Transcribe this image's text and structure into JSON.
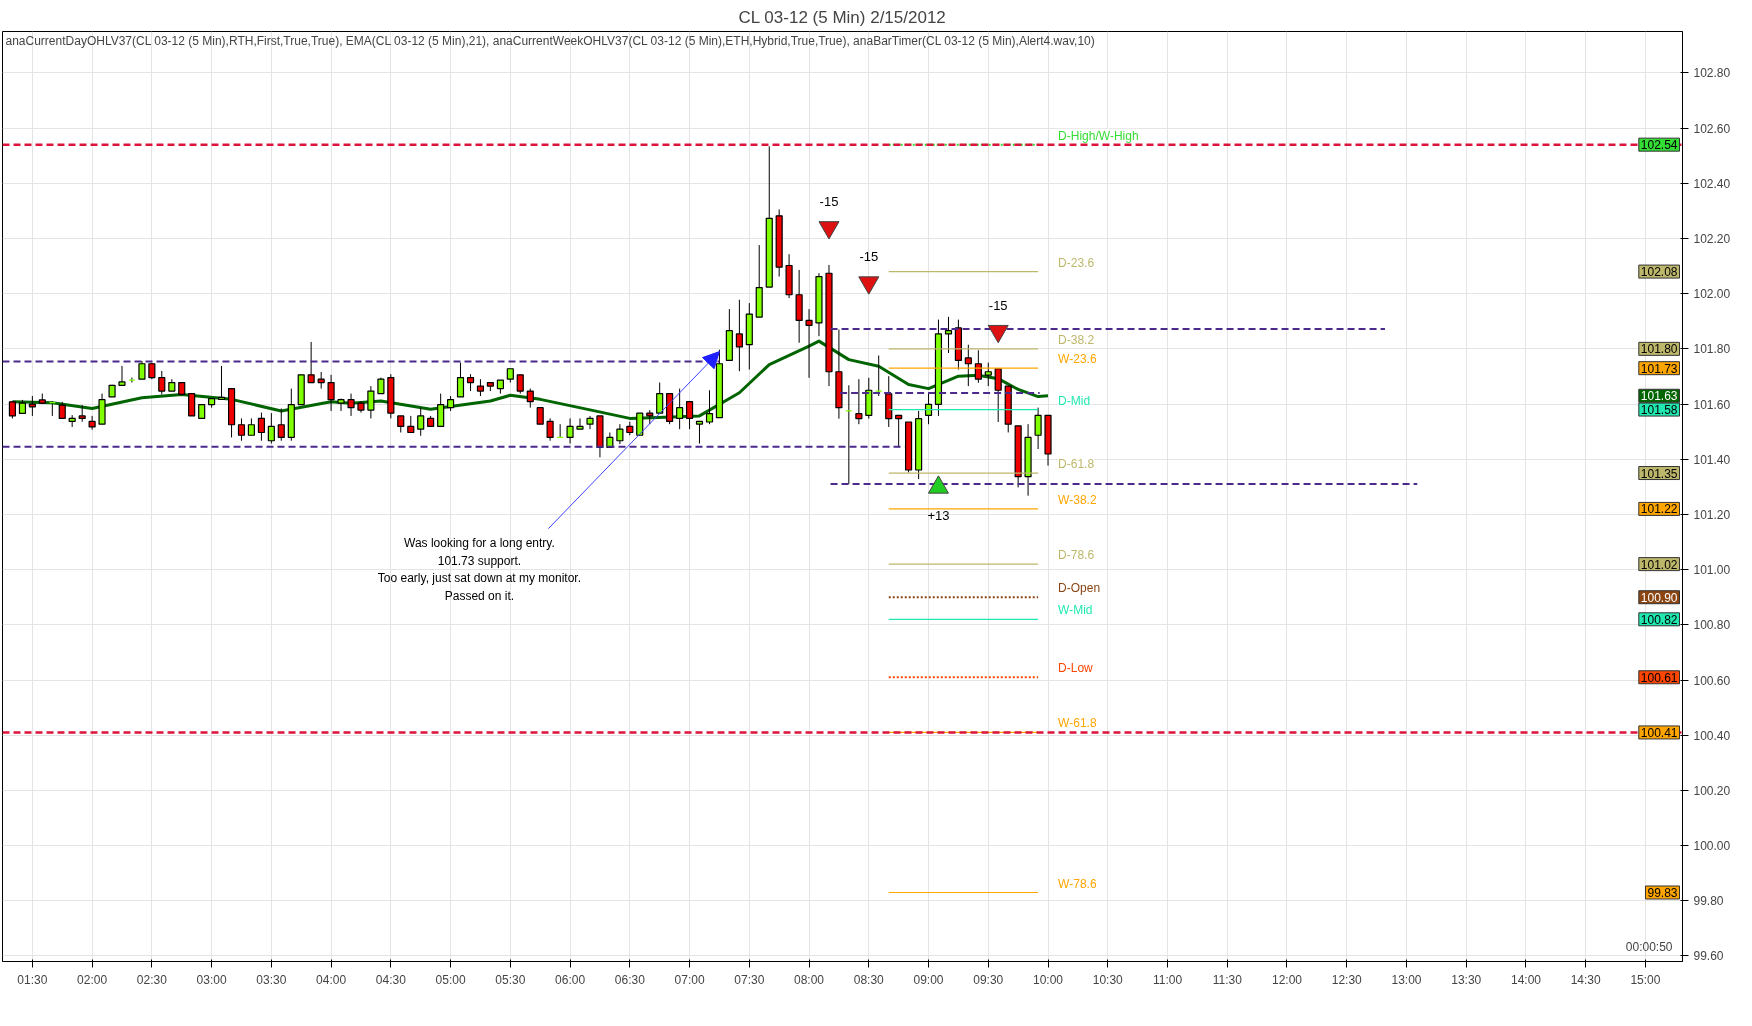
{
  "chart_data": {
    "type": "candlestick",
    "title": "CL 03-12 (5 Min) 2/15/2012",
    "xlim": [
      1.25,
      15.31
    ],
    "ylim": [
      99.58,
      102.95
    ],
    "xticks": [
      {
        "value": 1.5,
        "label": "01:30"
      },
      {
        "value": 2,
        "label": "02:00"
      },
      {
        "value": 2.5,
        "label": "02:30"
      },
      {
        "value": 3,
        "label": "03:00"
      },
      {
        "value": 3.5,
        "label": "03:30"
      },
      {
        "value": 4,
        "label": "04:00"
      },
      {
        "value": 4.5,
        "label": "04:30"
      },
      {
        "value": 5,
        "label": "05:00"
      },
      {
        "value": 5.5,
        "label": "05:30"
      },
      {
        "value": 6,
        "label": "06:00"
      },
      {
        "value": 6.5,
        "label": "06:30"
      },
      {
        "value": 7,
        "label": "07:00"
      },
      {
        "value": 7.5,
        "label": "07:30"
      },
      {
        "value": 8,
        "label": "08:00"
      },
      {
        "value": 8.5,
        "label": "08:30"
      },
      {
        "value": 9,
        "label": "09:00"
      },
      {
        "value": 9.5,
        "label": "09:30"
      },
      {
        "value": 10,
        "label": "10:00"
      },
      {
        "value": 10.5,
        "label": "10:30"
      },
      {
        "value": 11,
        "label": "11:00"
      },
      {
        "value": 11.5,
        "label": "11:30"
      },
      {
        "value": 12,
        "label": "12:00"
      },
      {
        "value": 12.5,
        "label": "12:30"
      },
      {
        "value": 13,
        "label": "13:00"
      },
      {
        "value": 13.5,
        "label": "13:30"
      },
      {
        "value": 14,
        "label": "14:00"
      },
      {
        "value": 14.5,
        "label": "14:30"
      },
      {
        "value": 15,
        "label": "15:00"
      }
    ],
    "yticks": [
      {
        "value": 99.6,
        "label": "99.60"
      },
      {
        "value": 99.8,
        "label": "99.80"
      },
      {
        "value": 100.0,
        "label": "100.00"
      },
      {
        "value": 100.2,
        "label": "100.20"
      },
      {
        "value": 100.4,
        "label": "100.40"
      },
      {
        "value": 100.6,
        "label": "100.60"
      },
      {
        "value": 100.8,
        "label": "100.80"
      },
      {
        "value": 101.0,
        "label": "101.00"
      },
      {
        "value": 101.2,
        "label": "101.20"
      },
      {
        "value": 101.4,
        "label": "101.40"
      },
      {
        "value": 101.6,
        "label": "101.60"
      },
      {
        "value": 101.8,
        "label": "101.80"
      },
      {
        "value": 102.0,
        "label": "102.00"
      },
      {
        "value": 102.2,
        "label": "102.20"
      },
      {
        "value": 102.4,
        "label": "102.40"
      },
      {
        "value": 102.6,
        "label": "102.60"
      },
      {
        "value": 102.8,
        "label": "102.80"
      }
    ],
    "grid": true,
    "ref_lines": [
      {
        "axis": "y",
        "value": 102.54,
        "color": "#dc143c",
        "line_style": "dashed"
      },
      {
        "axis": "y",
        "value": 100.41,
        "color": "#dc143c",
        "line_style": "dashed"
      }
    ],
    "series": [
      {
        "x": [
          1.333,
          1.417,
          1.5,
          1.583,
          1.667,
          1.75,
          1.833,
          1.917,
          2,
          2.083,
          2.167,
          2.25,
          2.333,
          2.417,
          2.5,
          2.583,
          2.667,
          2.75,
          2.833,
          2.917,
          3,
          3.083,
          3.167,
          3.25,
          3.333,
          3.417,
          3.5,
          3.583,
          3.667,
          3.75,
          3.833,
          3.917,
          4,
          4.083,
          4.167,
          4.25,
          4.333,
          4.417,
          4.5,
          4.583,
          4.667,
          4.75,
          4.833,
          4.917,
          5,
          5.083,
          5.167,
          5.25,
          5.333,
          5.417,
          5.5,
          5.583,
          5.667,
          5.75,
          5.833,
          5.917,
          6,
          6.083,
          6.167,
          6.25,
          6.333,
          6.417,
          6.5,
          6.583,
          6.667,
          6.75,
          6.833,
          6.917,
          7,
          7.083,
          7.167,
          7.25,
          7.333,
          7.417,
          7.5,
          7.583,
          7.667,
          7.75,
          7.833,
          7.917,
          8,
          8.083,
          8.167,
          8.25,
          8.333,
          8.417,
          8.5,
          8.583,
          8.667,
          8.75,
          8.833,
          8.917,
          9,
          9.083,
          9.167,
          9.25,
          9.333,
          9.417,
          9.5,
          9.583,
          9.667,
          9.75,
          9.833,
          9.917,
          10
        ],
        "ohlc": [
          [
            101.608,
            101.61,
            101.548,
            101.557
          ],
          [
            101.566,
            101.615,
            101.566,
            101.603
          ],
          [
            101.6,
            101.629,
            101.557,
            101.59
          ],
          [
            101.615,
            101.638,
            101.6,
            101.603
          ],
          [
            101.605,
            101.61,
            101.557,
            101.605
          ],
          [
            101.596,
            101.608,
            101.548,
            101.548
          ],
          [
            101.537,
            101.56,
            101.517,
            101.548
          ],
          [
            101.557,
            101.596,
            101.536,
            101.548
          ],
          [
            101.537,
            101.557,
            101.507,
            101.517
          ],
          [
            101.527,
            101.638,
            101.527,
            101.616
          ],
          [
            101.626,
            101.67,
            101.626,
            101.668
          ],
          [
            101.668,
            101.738,
            101.668,
            101.68
          ],
          [
            101.687,
            101.696,
            101.678,
            101.687
          ],
          [
            101.69,
            101.756,
            101.69,
            101.746
          ],
          [
            101.746,
            101.75,
            101.69,
            101.696
          ],
          [
            101.696,
            101.72,
            101.635,
            101.647
          ],
          [
            101.647,
            101.69,
            101.647,
            101.678
          ],
          [
            101.678,
            101.678,
            101.635,
            101.635
          ],
          [
            101.638,
            101.64,
            101.557,
            101.557
          ],
          [
            101.548,
            101.598,
            101.548,
            101.598
          ],
          [
            101.598,
            101.62,
            101.587,
            101.62
          ],
          [
            101.617,
            101.738,
            101.617,
            101.624
          ],
          [
            101.656,
            101.656,
            101.479,
            101.525
          ],
          [
            101.525,
            101.548,
            101.467,
            101.487
          ],
          [
            101.487,
            101.548,
            101.487,
            101.525
          ],
          [
            101.548,
            101.569,
            101.467,
            101.497
          ],
          [
            101.467,
            101.567,
            101.457,
            101.519
          ],
          [
            101.525,
            101.584,
            101.467,
            101.479
          ],
          [
            101.479,
            101.656,
            101.467,
            101.598
          ],
          [
            101.598,
            101.706,
            101.598,
            101.706
          ],
          [
            101.706,
            101.825,
            101.678,
            101.678
          ],
          [
            101.69,
            101.716,
            101.656,
            101.678
          ],
          [
            101.678,
            101.706,
            101.575,
            101.616
          ],
          [
            101.603,
            101.62,
            101.575,
            101.616
          ],
          [
            101.616,
            101.638,
            101.557,
            101.587
          ],
          [
            101.603,
            101.61,
            101.569,
            101.578
          ],
          [
            101.578,
            101.665,
            101.548,
            101.647
          ],
          [
            101.638,
            101.696,
            101.638,
            101.69
          ],
          [
            101.696,
            101.708,
            101.548,
            101.567
          ],
          [
            101.557,
            101.557,
            101.497,
            101.519
          ],
          [
            101.519,
            101.557,
            101.497,
            101.497
          ],
          [
            101.509,
            101.587,
            101.485,
            101.557
          ],
          [
            101.548,
            101.557,
            101.519,
            101.519
          ],
          [
            101.519,
            101.638,
            101.519,
            101.598
          ],
          [
            101.587,
            101.629,
            101.575,
            101.616
          ],
          [
            101.626,
            101.75,
            101.626,
            101.696
          ],
          [
            101.696,
            101.708,
            101.647,
            101.678
          ],
          [
            101.665,
            101.69,
            101.629,
            101.647
          ],
          [
            101.678,
            101.678,
            101.647,
            101.665
          ],
          [
            101.656,
            101.687,
            101.638,
            101.687
          ],
          [
            101.69,
            101.728,
            101.678,
            101.728
          ],
          [
            101.706,
            101.706,
            101.638,
            101.647
          ],
          [
            101.647,
            101.656,
            101.587,
            101.609
          ],
          [
            101.587,
            101.587,
            101.527,
            101.527
          ],
          [
            101.537,
            101.548,
            101.467,
            101.479
          ],
          [
            101.479,
            101.527,
            101.479,
            101.479
          ],
          [
            101.479,
            101.548,
            101.457,
            101.519
          ],
          [
            101.509,
            101.548,
            101.509,
            101.519
          ],
          [
            101.527,
            101.557,
            101.509,
            101.548
          ],
          [
            101.557,
            101.557,
            101.407,
            101.443
          ],
          [
            101.443,
            101.497,
            101.443,
            101.479
          ],
          [
            101.467,
            101.527,
            101.455,
            101.509
          ],
          [
            101.519,
            101.536,
            101.487,
            101.497
          ],
          [
            101.487,
            101.567,
            101.487,
            101.567
          ],
          [
            101.567,
            101.578,
            101.527,
            101.557
          ],
          [
            101.567,
            101.678,
            101.567,
            101.638
          ],
          [
            101.638,
            101.638,
            101.527,
            101.537
          ],
          [
            101.548,
            101.656,
            101.509,
            101.587
          ],
          [
            101.609,
            101.609,
            101.509,
            101.548
          ],
          [
            101.527,
            101.537,
            101.457,
            101.537
          ],
          [
            101.535,
            101.65,
            101.527,
            101.565
          ],
          [
            101.551,
            101.797,
            101.551,
            101.746
          ],
          [
            101.758,
            101.944,
            101.758,
            101.866
          ],
          [
            101.854,
            101.978,
            101.719,
            101.807
          ],
          [
            101.815,
            101.966,
            101.725,
            101.926
          ],
          [
            101.915,
            102.176,
            101.915,
            102.022
          ],
          [
            102.024,
            102.534,
            102.024,
            102.273
          ],
          [
            102.282,
            102.305,
            102.062,
            102.096
          ],
          [
            102.102,
            102.143,
            101.984,
            101.996
          ],
          [
            101.996,
            102.086,
            101.822,
            101.903
          ],
          [
            101.903,
            101.944,
            101.695,
            101.885
          ],
          [
            101.894,
            102.074,
            101.846,
            102.062
          ],
          [
            102.074,
            102.104,
            101.665,
            101.717
          ],
          [
            101.717,
            101.87,
            101.547,
            101.587
          ],
          [
            101.575,
            101.668,
            101.31,
            101.575
          ],
          [
            101.565,
            101.69,
            101.527,
            101.547
          ],
          [
            101.559,
            101.695,
            101.547,
            101.65
          ],
          [
            101.647,
            101.776,
            101.629,
            101.647
          ],
          [
            101.637,
            101.701,
            101.517,
            101.547
          ],
          [
            101.559,
            101.559,
            101.443,
            101.547
          ],
          [
            101.535,
            101.535,
            101.352,
            101.361
          ],
          [
            101.361,
            101.575,
            101.328,
            101.547
          ],
          [
            101.559,
            101.641,
            101.527,
            101.599
          ],
          [
            101.599,
            101.906,
            101.557,
            101.854
          ],
          [
            101.854,
            101.916,
            101.785,
            101.866
          ],
          [
            101.876,
            101.906,
            101.725,
            101.758
          ],
          [
            101.767,
            101.815,
            101.665,
            101.746
          ],
          [
            101.746,
            101.795,
            101.677,
            101.69
          ],
          [
            101.705,
            101.75,
            101.665,
            101.717
          ],
          [
            101.728,
            101.728,
            101.535,
            101.65
          ],
          [
            101.665,
            101.665,
            101.497,
            101.527
          ],
          [
            101.521,
            101.521,
            101.298,
            101.337
          ],
          [
            101.337,
            101.527,
            101.268,
            101.479
          ],
          [
            101.487,
            101.587,
            101.437,
            101.559
          ],
          [
            101.559,
            101.559,
            101.377,
            101.419
          ]
        ],
        "colors": [
          "#ee0000",
          "#7fff00",
          "#ee0000",
          "#ee0000",
          "#7fff00",
          "#ee0000",
          "#7fff00",
          "#ee0000",
          "#ee0000",
          "#7fff00",
          "#7fff00",
          "#7fff00",
          "#7fff00",
          "#7fff00",
          "#ee0000",
          "#ee0000",
          "#7fff00",
          "#ee0000",
          "#ee0000",
          "#7fff00",
          "#7fff00",
          "#7fff00",
          "#ee0000",
          "#ee0000",
          "#7fff00",
          "#ee0000",
          "#7fff00",
          "#ee0000",
          "#7fff00",
          "#7fff00",
          "#ee0000",
          "#ee0000",
          "#ee0000",
          "#7fff00",
          "#ee0000",
          "#ee0000",
          "#7fff00",
          "#7fff00",
          "#ee0000",
          "#ee0000",
          "#ee0000",
          "#7fff00",
          "#ee0000",
          "#7fff00",
          "#7fff00",
          "#7fff00",
          "#ee0000",
          "#ee0000",
          "#ee0000",
          "#7fff00",
          "#7fff00",
          "#ee0000",
          "#ee0000",
          "#ee0000",
          "#ee0000",
          "#7fff00",
          "#7fff00",
          "#7fff00",
          "#7fff00",
          "#ee0000",
          "#7fff00",
          "#7fff00",
          "#ee0000",
          "#7fff00",
          "#ee0000",
          "#7fff00",
          "#ee0000",
          "#7fff00",
          "#ee0000",
          "#7fff00",
          "#7fff00",
          "#7fff00",
          "#7fff00",
          "#ee0000",
          "#7fff00",
          "#7fff00",
          "#7fff00",
          "#ee0000",
          "#ee0000",
          "#ee0000",
          "#ee0000",
          "#7fff00",
          "#ee0000",
          "#ee0000",
          "#7fff00",
          "#ee0000",
          "#7fff00",
          "#7fff00",
          "#ee0000",
          "#ee0000",
          "#ee0000",
          "#7fff00",
          "#7fff00",
          "#7fff00",
          "#7fff00",
          "#ee0000",
          "#ee0000",
          "#ee0000",
          "#7fff00",
          "#ee0000",
          "#ee0000",
          "#ee0000",
          "#7fff00",
          "#7fff00",
          "#ee0000"
        ]
      },
      {
        "type": "line",
        "color": "#4b2a8c",
        "line_style": "dashed",
        "x": [
          1.25,
          7.25
        ],
        "values": [
          101.754,
          101.754
        ]
      },
      {
        "type": "line",
        "color": "#4b2a8c",
        "line_style": "dashed",
        "x": [
          1.25,
          8.8
        ],
        "values": [
          101.445,
          101.445
        ]
      },
      {
        "type": "line",
        "color": "#4b2a8c",
        "line_style": "dashed",
        "x": [
          8.18,
          12.82
        ],
        "values": [
          101.872,
          101.872
        ]
      },
      {
        "type": "line",
        "color": "#4b2a8c",
        "line_style": "dashed",
        "x": [
          8.18,
          13.09
        ],
        "values": [
          101.31,
          101.31
        ]
      },
      {
        "type": "line",
        "color": "#4b2a8c",
        "line_style": "dashed",
        "x": [
          8.26,
          9.93
        ],
        "values": [
          101.64,
          101.64
        ]
      },
      {
        "type": "line",
        "name": "D-High/W-High",
        "color": "#33dd33",
        "line_style": "dotted",
        "x": [
          8.667,
          9.917
        ],
        "values": [
          102.54,
          102.54
        ]
      },
      {
        "type": "line",
        "name": "D-23.6",
        "color": "#bdb76b",
        "line_style": "solid",
        "x": [
          8.667,
          9.917
        ],
        "values": [
          102.08,
          102.08
        ]
      },
      {
        "type": "line",
        "name": "D-38.2",
        "color": "#bdb76b",
        "line_style": "solid",
        "x": [
          8.667,
          9.917
        ],
        "values": [
          101.8,
          101.8
        ]
      },
      {
        "type": "line",
        "name": "W-23.6",
        "color": "#ffa500",
        "line_style": "solid",
        "x": [
          8.667,
          9.917
        ],
        "values": [
          101.73,
          101.73
        ]
      },
      {
        "type": "line",
        "name": "D-Mid",
        "color": "#20e8b0",
        "line_style": "solid",
        "x": [
          8.667,
          9.917
        ],
        "values": [
          101.58,
          101.58
        ]
      },
      {
        "type": "line",
        "name": "D-61.8",
        "color": "#bdb76b",
        "line_style": "solid",
        "x": [
          8.667,
          9.917
        ],
        "values": [
          101.35,
          101.35
        ]
      },
      {
        "type": "line",
        "name": "W-38.2",
        "color": "#ffa500",
        "line_style": "solid",
        "x": [
          8.667,
          9.917
        ],
        "values": [
          101.22,
          101.22
        ]
      },
      {
        "type": "line",
        "name": "D-78.6",
        "color": "#bdb76b",
        "line_style": "solid",
        "x": [
          8.667,
          9.917
        ],
        "values": [
          101.02,
          101.02
        ]
      },
      {
        "type": "line",
        "name": "D-Open",
        "color": "#8b4513",
        "line_style": "dotted",
        "x": [
          8.667,
          9.917
        ],
        "values": [
          100.9,
          100.9
        ]
      },
      {
        "type": "line",
        "name": "W-Mid",
        "color": "#20e8b0",
        "line_style": "solid",
        "x": [
          8.667,
          9.917
        ],
        "values": [
          100.82,
          100.82
        ]
      },
      {
        "type": "line",
        "name": "D-Low",
        "color": "#ff4500",
        "line_style": "dotted",
        "x": [
          8.667,
          9.917
        ],
        "values": [
          100.61,
          100.61
        ]
      },
      {
        "type": "line",
        "name": "W-61.8",
        "color": "#ffa500",
        "line_style": "solid",
        "x": [
          8.667,
          9.917
        ],
        "values": [
          100.41,
          100.41
        ]
      },
      {
        "type": "line",
        "name": "W-78.6",
        "color": "#ffa500",
        "line_style": "solid",
        "x": [
          8.667,
          9.917
        ],
        "values": [
          99.83,
          99.83
        ]
      },
      {
        "type": "line",
        "color": "#006400",
        "line_style": "solid",
        "x": [
          1.333,
          1.667,
          2.0,
          2.417,
          2.75,
          3.167,
          3.583,
          4.0,
          4.167,
          4.417,
          4.833,
          5.333,
          5.5,
          5.75,
          6.167,
          6.5,
          7.083,
          7.417,
          7.667,
          8.0,
          8.083,
          8.333,
          8.583,
          8.833,
          9.0,
          9.25,
          9.417,
          9.583,
          9.75,
          9.917,
          10.0
        ],
        "values": [
          101.608,
          101.605,
          101.584,
          101.623,
          101.635,
          101.617,
          101.575,
          101.608,
          101.603,
          101.611,
          101.581,
          101.611,
          101.632,
          101.617,
          101.579,
          101.548,
          101.557,
          101.641,
          101.743,
          101.81,
          101.828,
          101.761,
          101.737,
          101.671,
          101.656,
          101.701,
          101.704,
          101.692,
          101.653,
          101.627,
          101.63
        ]
      },
      {
        "type": "scatter",
        "marker": "triangle",
        "color": "#dd1111",
        "x": [
          8.167,
          8.5,
          9.583
        ],
        "values": [
          102.24,
          102.04,
          101.864
        ]
      },
      {
        "type": "scatter",
        "marker": "triangle",
        "color": "#22cc22",
        "x": [
          9.083
        ],
        "values": [
          101.298
        ]
      }
    ],
    "annotations": [
      "anaCurrentDayOHLV37(CL 03-12 (5 Min),RTH,First,True,True), EMA(CL 03-12 (5 Min),21), anaCurrentWeekOHLV37(CL 03-12 (5 Min),ETH,Hybrid,True,True), anaBarTimer(CL 03-12 (5 Min),Alert4.wav,10)",
      "00:00:50",
      {
        "text": "-15",
        "x": 8.167,
        "y": 102.24
      },
      {
        "text": "-15",
        "x": 8.5,
        "y": 102.04
      },
      {
        "text": "-15",
        "x": 9.583,
        "y": 101.864
      },
      {
        "text": "+13",
        "x": 9.083,
        "y": 101.298
      },
      {
        "text": "102.54",
        "y": 102.54
      },
      {
        "text": "102.08",
        "y": 102.08
      },
      {
        "text": "101.80",
        "y": 101.8
      },
      {
        "text": "101.73",
        "y": 101.73
      },
      {
        "text": "101.63",
        "y": 101.63
      },
      {
        "text": "101.58",
        "y": 101.58
      },
      {
        "text": "101.35",
        "y": 101.35
      },
      {
        "text": "101.22",
        "y": 101.22
      },
      {
        "text": "101.02",
        "y": 101.02
      },
      {
        "text": "100.90",
        "y": 100.9
      },
      {
        "text": "100.82",
        "y": 100.82
      },
      {
        "text": "100.61",
        "y": 100.61
      },
      {
        "text": "100.41",
        "y": 100.41
      },
      {
        "text": "99.83",
        "y": 99.83
      },
      {
        "text": "Was looking for a long entry.\n101.73 support.\nToo early, just sat down at my monitor.\nPassed on it.",
        "x": 7.25,
        "y": 101.79
      }
    ]
  }
}
